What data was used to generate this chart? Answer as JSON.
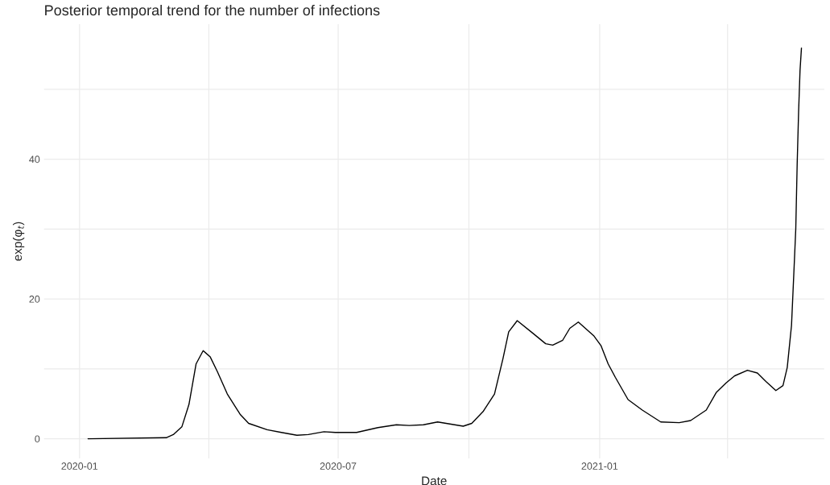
{
  "chart_data": {
    "type": "line",
    "title": "Posterior temporal trend for the number of infections",
    "xlabel": "Date",
    "ylabel": "exp(φ$_{t}$)",
    "x": [
      "2020-01-07",
      "2020-03-02",
      "2020-03-07",
      "2020-03-13",
      "2020-03-18",
      "2020-03-23",
      "2020-03-28",
      "2020-04-02",
      "2020-04-07",
      "2020-04-14",
      "2020-04-23",
      "2020-04-29",
      "2020-05-12",
      "2020-05-22",
      "2020-06-02",
      "2020-06-10",
      "2020-06-21",
      "2020-06-29",
      "2020-07-14",
      "2020-07-29",
      "2020-08-11",
      "2020-08-20",
      "2020-08-30",
      "2020-09-09",
      "2020-09-27",
      "2020-10-03",
      "2020-10-11",
      "2020-10-19",
      "2020-10-25",
      "2020-10-29",
      "2020-11-04",
      "2020-11-15",
      "2020-11-24",
      "2020-11-29",
      "2020-12-06",
      "2020-12-11",
      "2020-12-17",
      "2020-12-28",
      "2021-01-02",
      "2021-01-07",
      "2021-01-12",
      "2021-01-21",
      "2021-01-31",
      "2021-02-13",
      "2021-02-26",
      "2021-03-06",
      "2021-03-17",
      "2021-03-24",
      "2021-03-31",
      "2021-04-06",
      "2021-04-15",
      "2021-04-22",
      "2021-04-28",
      "2021-05-05",
      "2021-05-10",
      "2021-05-13",
      "2021-05-16",
      "2021-05-18",
      "2021-05-19",
      "2021-05-20",
      "2021-05-21",
      "2021-05-22",
      "2021-05-23"
    ],
    "series": [
      {
        "color": "#000000",
        "values": [
          0,
          0.15,
          0.6,
          1.7,
          4.9,
          10.7,
          12.6,
          11.7,
          9.6,
          6.4,
          3.5,
          2.2,
          1.3,
          0.9,
          0.5,
          0.6,
          1.0,
          0.9,
          0.9,
          1.6,
          2.0,
          1.9,
          2.0,
          2.4,
          1.8,
          2.2,
          3.9,
          6.4,
          11.5,
          15.3,
          16.9,
          15.1,
          13.6,
          13.4,
          14.1,
          15.8,
          16.7,
          14.7,
          13.3,
          10.7,
          8.8,
          5.6,
          4.1,
          2.4,
          2.3,
          2.6,
          4.1,
          6.6,
          8.0,
          9.0,
          9.8,
          9.4,
          8.2,
          6.9,
          7.6,
          10.2,
          16.2,
          25.3,
          30,
          39.4,
          46.8,
          52.7,
          55.9
        ]
      }
    ],
    "xlim": [
      "2019-12-07",
      "2021-06-08"
    ],
    "xticks": [
      {
        "value": "2020-01",
        "label": "2020-01"
      },
      {
        "value": "2020-04",
        "label": null
      },
      {
        "value": "2020-07",
        "label": "2020-07"
      },
      {
        "value": "2020-10",
        "label": null
      },
      {
        "value": "2021-01",
        "label": "2021-01"
      },
      {
        "value": "2021-04",
        "label": null
      }
    ],
    "ylim": [
      -2.8,
      59.3
    ],
    "yticks": [
      0,
      {
        "value": 10,
        "label": null
      },
      20,
      {
        "value": 30,
        "label": null
      },
      40,
      {
        "value": 50,
        "label": null
      }
    ],
    "grid": true,
    "line_style": "solid"
  }
}
